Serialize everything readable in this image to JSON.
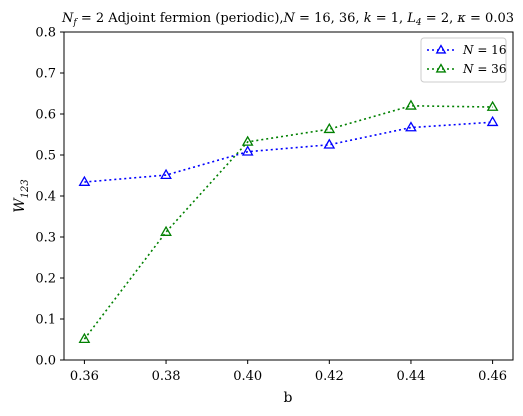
{
  "chart_data": {
    "type": "line",
    "title": "N_f = 2 Adjoint fermion (periodic), N = 16, 36,  k = 1,  L_4 = 2,  κ = 0.03",
    "title_parts": {
      "nf": "N",
      "nf_sub": "f",
      "nf_eq": " = 2 Adjoint fermion (periodic),",
      "n": "N",
      "n_eq": " = 16, 36,  ",
      "k": "k",
      "k_eq": " = 1,  ",
      "l": "L",
      "l_sub": "4",
      "l_eq": " = 2,  ",
      "kappa": "κ",
      "kappa_eq": " = 0.03"
    },
    "xlabel": "b",
    "ylabel_main": "W",
    "ylabel_sub": "123",
    "xlim": [
      0.355,
      0.465
    ],
    "ylim": [
      0.0,
      0.8
    ],
    "xticks": [
      0.36,
      0.38,
      0.4,
      0.42,
      0.44,
      0.46
    ],
    "xtick_labels": [
      "0.36",
      "0.38",
      "0.40",
      "0.42",
      "0.44",
      "0.46"
    ],
    "yticks": [
      0.0,
      0.1,
      0.2,
      0.3,
      0.4,
      0.5,
      0.6,
      0.7,
      0.8
    ],
    "ytick_labels": [
      "0.0",
      "0.1",
      "0.2",
      "0.3",
      "0.4",
      "0.5",
      "0.6",
      "0.7",
      "0.8"
    ],
    "grid": false,
    "legend_position": "top-right",
    "x": [
      0.36,
      0.38,
      0.4,
      0.42,
      0.44,
      0.46
    ],
    "series": [
      {
        "name": "N = 16",
        "legend_var": "N",
        "legend_eq": " = 16",
        "color": "#0000ff",
        "linestyle": "dotted",
        "marker": "triangle-open",
        "values": [
          0.434,
          0.451,
          0.508,
          0.525,
          0.567,
          0.58
        ]
      },
      {
        "name": "N = 36",
        "legend_var": "N",
        "legend_eq": " = 36",
        "color": "#008000",
        "linestyle": "dotted",
        "marker": "triangle-open",
        "values": [
          0.051,
          0.312,
          0.532,
          0.563,
          0.62,
          0.617
        ]
      }
    ]
  }
}
